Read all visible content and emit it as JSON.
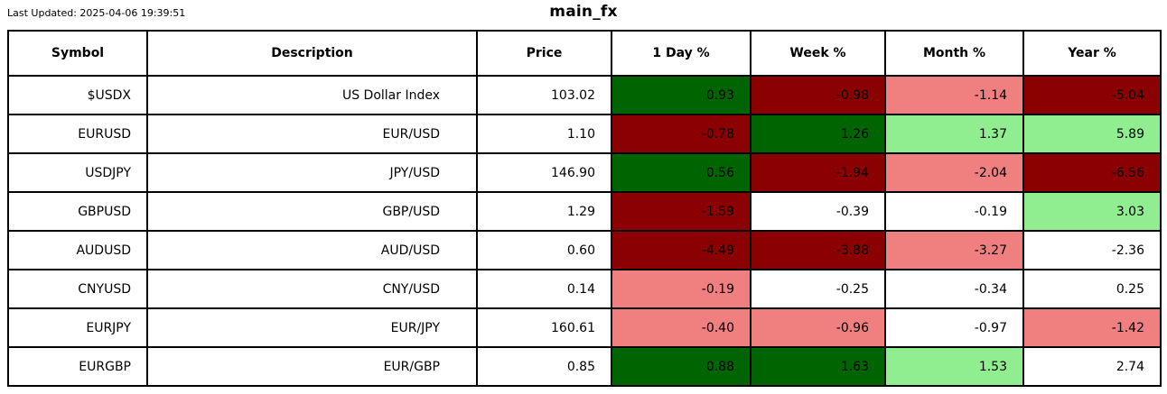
{
  "meta": {
    "last_updated": "Last Updated: 2025-04-06 19:39:51",
    "title": "main_fx"
  },
  "colors": {
    "dark_green": "#006400",
    "dark_red": "#8B0000",
    "light_green": "#90EE90",
    "light_red": "#F08080",
    "white": "#FFFFFF",
    "border": "#000000",
    "text": "#000000"
  },
  "table": {
    "columns": [
      "Symbol",
      "Description",
      "Price",
      "1 Day %",
      "Week %",
      "Month %",
      "Year %"
    ],
    "change_periods": [
      "1-day",
      "week",
      "month",
      "year"
    ],
    "rows": [
      {
        "symbol": "$USDX",
        "description": "US Dollar Index",
        "price": "103.02",
        "changes": [
          {
            "value": "0.93",
            "color": "dark_green"
          },
          {
            "value": "-0.98",
            "color": "dark_red"
          },
          {
            "value": "-1.14",
            "color": "light_red"
          },
          {
            "value": "-5.04",
            "color": "dark_red"
          }
        ]
      },
      {
        "symbol": "EURUSD",
        "description": "EUR/USD",
        "price": "1.10",
        "changes": [
          {
            "value": "-0.78",
            "color": "dark_red"
          },
          {
            "value": "1.26",
            "color": "dark_green"
          },
          {
            "value": "1.37",
            "color": "light_green"
          },
          {
            "value": "5.89",
            "color": "light_green"
          }
        ]
      },
      {
        "symbol": "USDJPY",
        "description": "JPY/USD",
        "price": "146.90",
        "changes": [
          {
            "value": "0.56",
            "color": "dark_green"
          },
          {
            "value": "-1.94",
            "color": "dark_red"
          },
          {
            "value": "-2.04",
            "color": "light_red"
          },
          {
            "value": "-6.56",
            "color": "dark_red"
          }
        ]
      },
      {
        "symbol": "GBPUSD",
        "description": "GBP/USD",
        "price": "1.29",
        "changes": [
          {
            "value": "-1.59",
            "color": "dark_red"
          },
          {
            "value": "-0.39",
            "color": "white"
          },
          {
            "value": "-0.19",
            "color": "white"
          },
          {
            "value": "3.03",
            "color": "light_green"
          }
        ]
      },
      {
        "symbol": "AUDUSD",
        "description": "AUD/USD",
        "price": "0.60",
        "changes": [
          {
            "value": "-4.49",
            "color": "dark_red"
          },
          {
            "value": "-3.88",
            "color": "dark_red"
          },
          {
            "value": "-3.27",
            "color": "light_red"
          },
          {
            "value": "-2.36",
            "color": "white"
          }
        ]
      },
      {
        "symbol": "CNYUSD",
        "description": "CNY/USD",
        "price": "0.14",
        "changes": [
          {
            "value": "-0.19",
            "color": "light_red"
          },
          {
            "value": "-0.25",
            "color": "white"
          },
          {
            "value": "-0.34",
            "color": "white"
          },
          {
            "value": "0.25",
            "color": "white"
          }
        ]
      },
      {
        "symbol": "EURJPY",
        "description": "EUR/JPY",
        "price": "160.61",
        "changes": [
          {
            "value": "-0.40",
            "color": "light_red"
          },
          {
            "value": "-0.96",
            "color": "light_red"
          },
          {
            "value": "-0.97",
            "color": "white"
          },
          {
            "value": "-1.42",
            "color": "light_red"
          }
        ]
      },
      {
        "symbol": "EURGBP",
        "description": "EUR/GBP",
        "price": "0.85",
        "changes": [
          {
            "value": "0.88",
            "color": "dark_green"
          },
          {
            "value": "1.63",
            "color": "dark_green"
          },
          {
            "value": "1.53",
            "color": "light_green"
          },
          {
            "value": "2.74",
            "color": "white"
          }
        ]
      }
    ]
  }
}
